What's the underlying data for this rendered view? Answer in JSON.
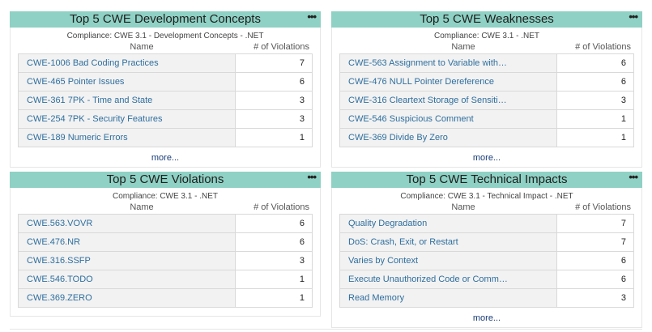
{
  "columns": {
    "name": "Name",
    "count": "# of Violations"
  },
  "more_label": "more...",
  "menu_icon": "ellipsis-icon",
  "panels": [
    {
      "title": "Top 5 CWE Development Concepts",
      "subtitle": "Compliance: CWE 3.1 - Development Concepts - .NET",
      "rows": [
        {
          "name": "CWE-1006 Bad Coding Practices",
          "count": "7"
        },
        {
          "name": "CWE-465 Pointer Issues",
          "count": "6"
        },
        {
          "name": "CWE-361 7PK - Time and State",
          "count": "3"
        },
        {
          "name": "CWE-254 7PK - Security Features",
          "count": "3"
        },
        {
          "name": "CWE-189 Numeric Errors",
          "count": "1"
        }
      ],
      "show_more": true
    },
    {
      "title": "Top 5 CWE Weaknesses",
      "subtitle": "Compliance: CWE 3.1 - .NET",
      "rows": [
        {
          "name": "CWE-563 Assignment to Variable with…",
          "count": "6"
        },
        {
          "name": "CWE-476 NULL Pointer Dereference",
          "count": "6"
        },
        {
          "name": "CWE-316 Cleartext Storage of Sensiti…",
          "count": "3"
        },
        {
          "name": "CWE-546 Suspicious Comment",
          "count": "1"
        },
        {
          "name": "CWE-369 Divide By Zero",
          "count": "1"
        }
      ],
      "show_more": true
    },
    {
      "title": "Top 5 CWE Violations",
      "subtitle": "Compliance: CWE 3.1 - .NET",
      "rows": [
        {
          "name": "CWE.563.VOVR",
          "count": "6"
        },
        {
          "name": "CWE.476.NR",
          "count": "6"
        },
        {
          "name": "CWE.316.SSFP",
          "count": "3"
        },
        {
          "name": "CWE.546.TODO",
          "count": "1"
        },
        {
          "name": "CWE.369.ZERO",
          "count": "1"
        }
      ],
      "show_more": false
    },
    {
      "title": "Top 5 CWE Technical Impacts",
      "subtitle": "Compliance: CWE 3.1 - Technical Impact - .NET",
      "rows": [
        {
          "name": "Quality Degradation",
          "count": "7"
        },
        {
          "name": "DoS: Crash, Exit, or Restart",
          "count": "7"
        },
        {
          "name": "Varies by Context",
          "count": "6"
        },
        {
          "name": "Execute Unauthorized Code or Comm…",
          "count": "6"
        },
        {
          "name": "Read Memory",
          "count": "3"
        }
      ],
      "show_more": true
    }
  ]
}
